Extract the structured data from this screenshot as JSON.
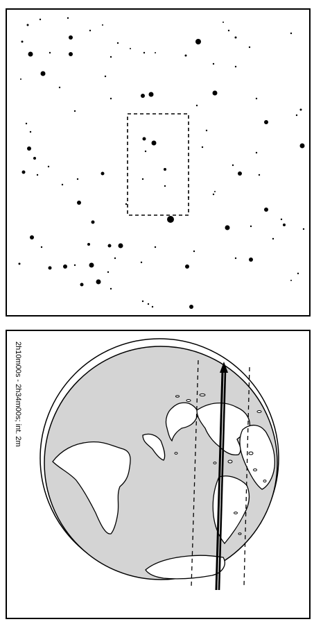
{
  "figure": {
    "time_range_label": "2h10m00s - 2h34m00s; int. 2m",
    "colors": {
      "ink": "#000000",
      "paper": "#ffffff",
      "ocean": "#d4d4d4",
      "land": "#ffffff"
    }
  },
  "star_field": {
    "box_style": "dashed"
  },
  "globe": {
    "track_style": "arrow",
    "boundary_style": "dashed"
  }
}
